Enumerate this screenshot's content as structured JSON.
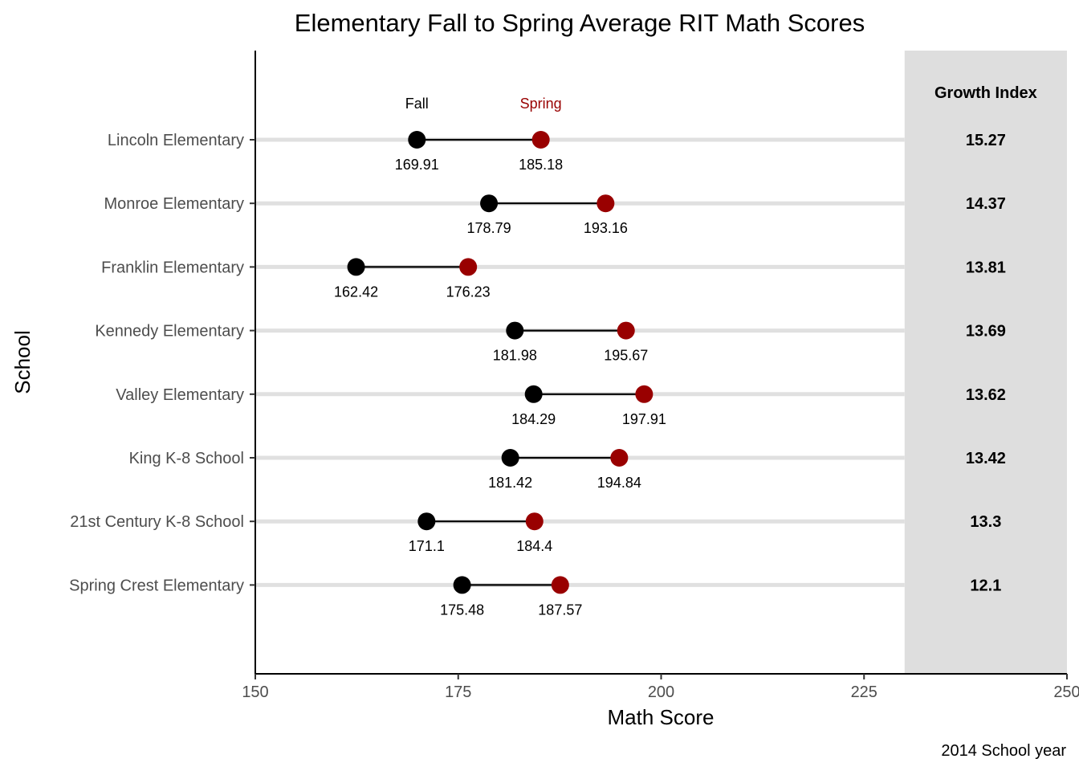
{
  "chart_data": {
    "type": "dumbbell",
    "title": "Elementary Fall to Spring Average RIT Math Scores",
    "xlabel": "Math Score",
    "ylabel": "School",
    "caption": "2014 School year",
    "xlim": [
      150,
      250
    ],
    "xticks": [
      "150",
      "175",
      "200",
      "225",
      "250"
    ],
    "grid": "horizontal lines per school",
    "legend": {
      "fall_label": "Fall",
      "spring_label": "Spring"
    },
    "colors": {
      "fall": "#000000",
      "spring": "#990000",
      "row_line": "#e0e0e0",
      "growth_panel": "#dedede"
    },
    "growth_panel": {
      "header": "Growth Index",
      "x_start": 230
    },
    "schools": [
      {
        "name": "Lincoln Elementary",
        "fall": 169.91,
        "spring": 185.18,
        "fall_label": "169.91",
        "spring_label": "185.18",
        "growth": "15.27"
      },
      {
        "name": "Monroe Elementary",
        "fall": 178.79,
        "spring": 193.16,
        "fall_label": "178.79",
        "spring_label": "193.16",
        "growth": "14.37"
      },
      {
        "name": "Franklin Elementary",
        "fall": 162.42,
        "spring": 176.23,
        "fall_label": "162.42",
        "spring_label": "176.23",
        "growth": "13.81"
      },
      {
        "name": "Kennedy Elementary",
        "fall": 181.98,
        "spring": 195.67,
        "fall_label": "181.98",
        "spring_label": "195.67",
        "growth": "13.69"
      },
      {
        "name": "Valley Elementary",
        "fall": 184.29,
        "spring": 197.91,
        "fall_label": "184.29",
        "spring_label": "197.91",
        "growth": "13.62"
      },
      {
        "name": "King K-8 School",
        "fall": 181.42,
        "spring": 194.84,
        "fall_label": "181.42",
        "spring_label": "194.84",
        "growth": "13.42"
      },
      {
        "name": "21st Century K-8 School",
        "fall": 171.1,
        "spring": 184.4,
        "fall_label": "171.1",
        "spring_label": "184.4",
        "growth": "13.3"
      },
      {
        "name": "Spring Crest Elementary",
        "fall": 175.48,
        "spring": 187.57,
        "fall_label": "175.48",
        "spring_label": "187.57",
        "growth": "12.1"
      }
    ]
  }
}
